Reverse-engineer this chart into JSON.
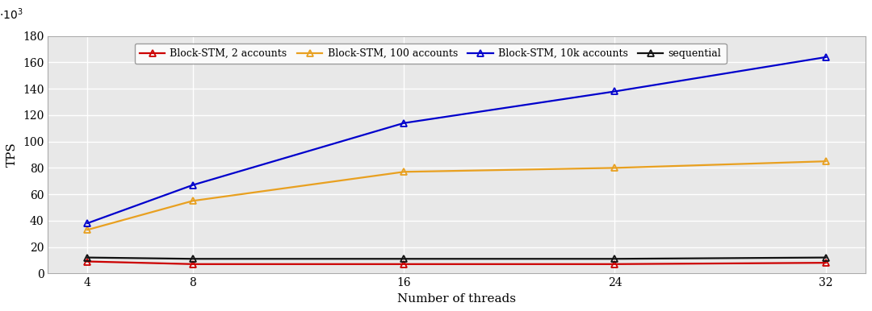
{
  "x": [
    4,
    8,
    16,
    24,
    32
  ],
  "series": [
    {
      "label": "Block-STM, 2 accounts",
      "color": "#cc0000",
      "marker": "^",
      "markerfacecolor": "none",
      "values": [
        9000,
        7000,
        7000,
        7000,
        8000
      ]
    },
    {
      "label": "Block-STM, 100 accounts",
      "color": "#e8a020",
      "marker": "^",
      "markerfacecolor": "none",
      "values": [
        33000,
        55000,
        77000,
        80000,
        85000
      ]
    },
    {
      "label": "Block-STM, 10k accounts",
      "color": "#0000cc",
      "marker": "^",
      "markerfacecolor": "none",
      "values": [
        38000,
        67000,
        114000,
        138000,
        164000
      ]
    },
    {
      "label": "sequential",
      "color": "#111111",
      "marker": "^",
      "markerfacecolor": "none",
      "values": [
        12000,
        11000,
        11000,
        11000,
        12000
      ]
    }
  ],
  "xlabel": "Number of threads",
  "ylabel": "TPS",
  "ylim": [
    0,
    180000
  ],
  "yticks": [
    0,
    20000,
    40000,
    60000,
    80000,
    100000,
    120000,
    140000,
    160000,
    180000
  ],
  "xticks": [
    4,
    8,
    16,
    24,
    32
  ],
  "xticklabels": [
    "4",
    "8",
    "16",
    "24",
    "32"
  ],
  "xlim": [
    2.5,
    33.5
  ],
  "grid_color": "#cccccc",
  "plot_bg_color": "#e8e8e8",
  "fig_bg_color": "#ffffff",
  "legend_fontsize": 9,
  "axis_fontsize": 11,
  "tick_fontsize": 10,
  "linewidth": 1.6,
  "markersize": 6
}
